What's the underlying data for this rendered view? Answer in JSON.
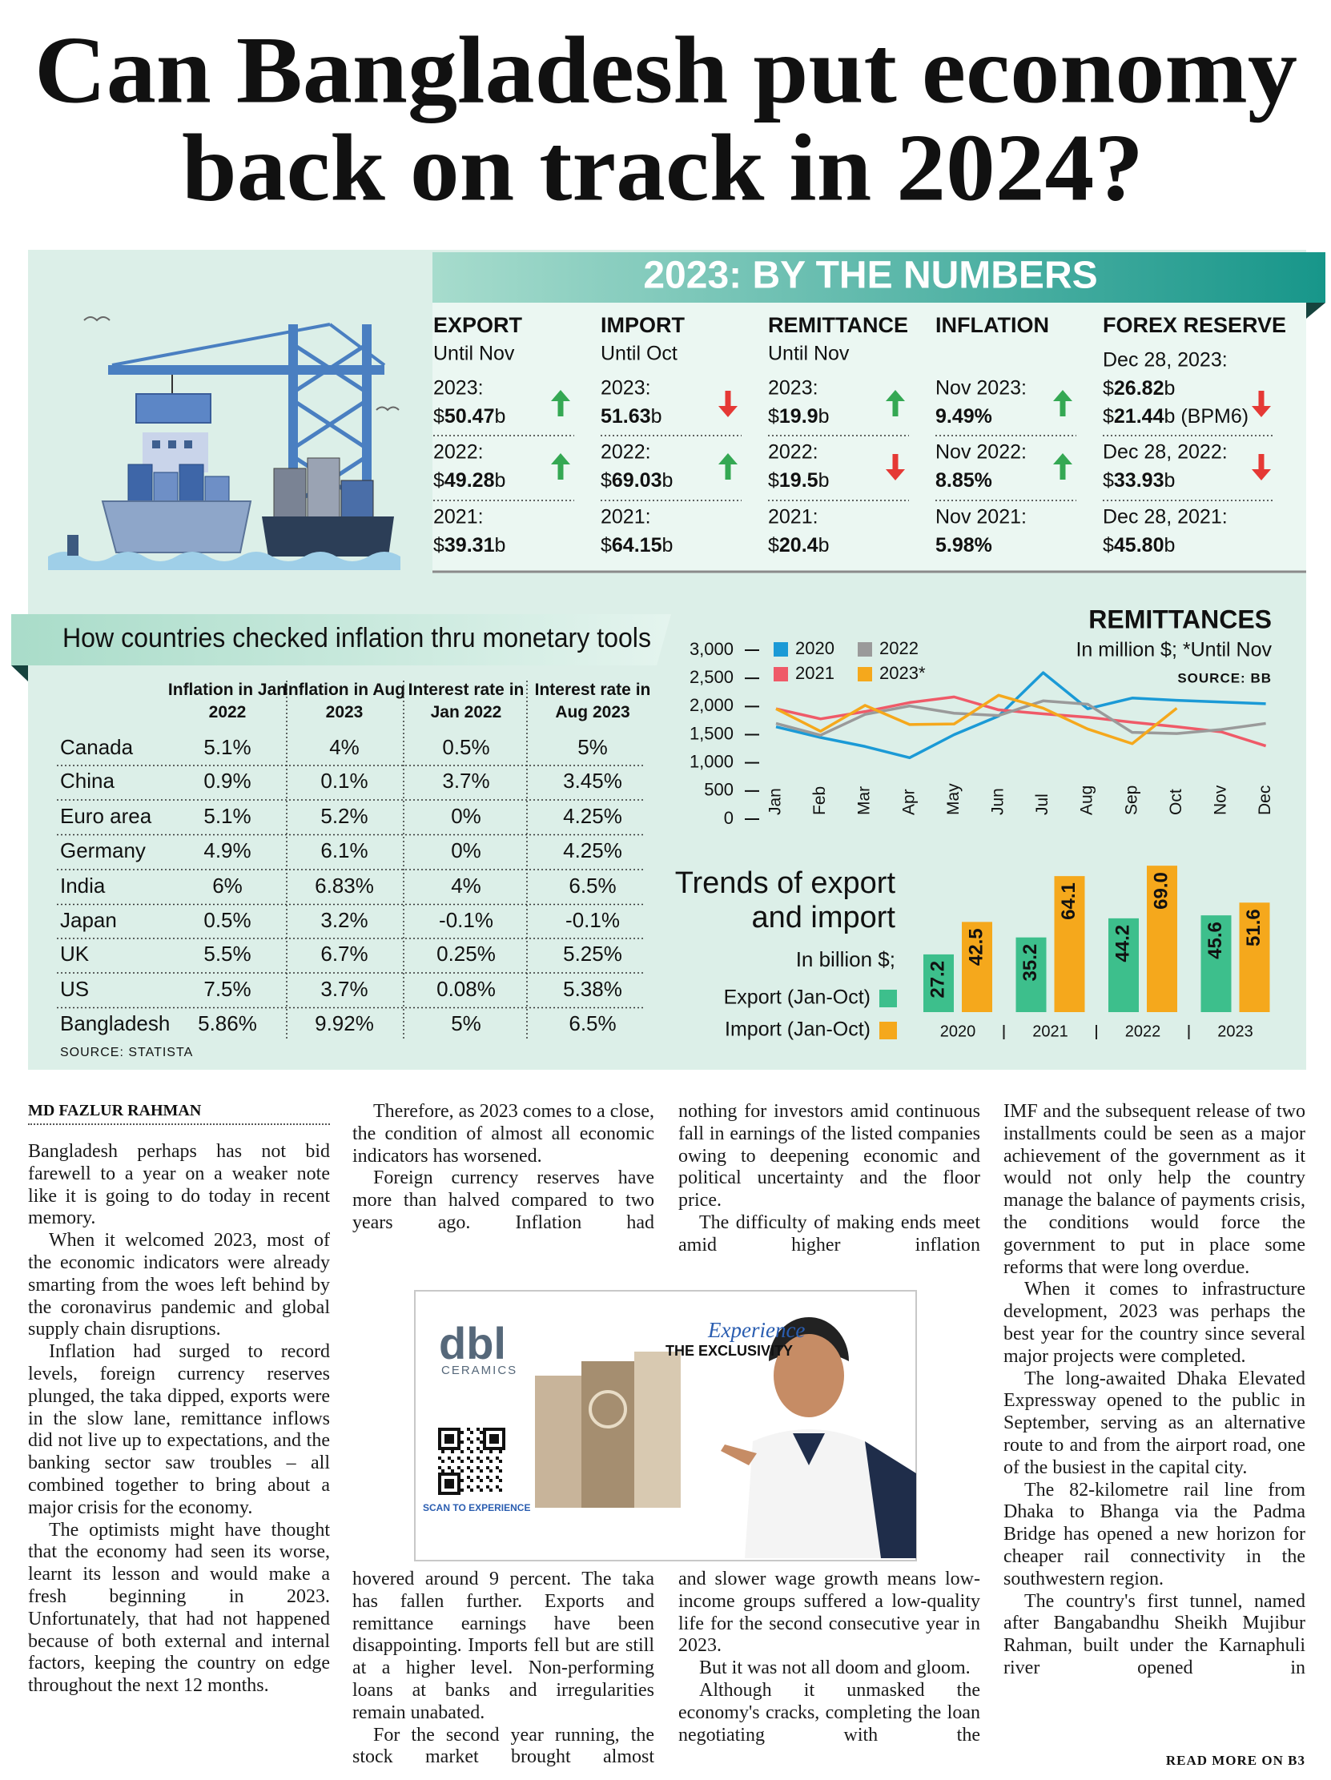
{
  "headline": {
    "lines": [
      "Can Bangladesh put economy",
      "back on track in 2024?"
    ]
  },
  "numbers": {
    "banner": "2023: BY THE NUMBERS",
    "columns": [
      {
        "title": "EXPORT",
        "subtitle": "Until Nov",
        "rows": [
          {
            "label": "2023:",
            "values": [
              "$50.47b"
            ],
            "trend": "up"
          },
          {
            "label": "2022:",
            "values": [
              "$49.28b"
            ],
            "trend": "up"
          },
          {
            "label": "2021:",
            "values": [
              "$39.31b"
            ]
          }
        ]
      },
      {
        "title": "IMPORT",
        "subtitle": "Until Oct",
        "rows": [
          {
            "label": "2023:",
            "values": [
              "51.63b"
            ],
            "trend": "down"
          },
          {
            "label": "2022:",
            "values": [
              "$69.03b"
            ],
            "trend": "up"
          },
          {
            "label": "2021:",
            "values": [
              "$64.15b"
            ]
          }
        ]
      },
      {
        "title": "REMITTANCE",
        "subtitle": "Until Nov",
        "rows": [
          {
            "label": "2023:",
            "values": [
              "$19.9b"
            ],
            "trend": "up"
          },
          {
            "label": "2022:",
            "values": [
              "$19.5b"
            ],
            "trend": "down"
          },
          {
            "label": "2021:",
            "values": [
              "$20.4b"
            ]
          }
        ]
      },
      {
        "title": "INFLATION",
        "rows": [
          {
            "label": "Nov 2023:",
            "values": [
              "9.49%"
            ],
            "trend": "up"
          },
          {
            "label": "Nov 2022:",
            "values": [
              "8.85%"
            ],
            "trend": "up"
          },
          {
            "label": "Nov 2021:",
            "values": [
              "5.98%"
            ]
          }
        ]
      },
      {
        "title": "FOREX RESERVE",
        "rows": [
          {
            "label": "Dec 28, 2023:",
            "values": [
              "$26.82b",
              "$21.44b (BPM6)"
            ],
            "trend": "down"
          },
          {
            "label": "Dec 28, 2022:",
            "values": [
              "$33.93b"
            ],
            "trend": "down"
          },
          {
            "label": "Dec 28, 2021:",
            "values": [
              "$45.80b"
            ]
          }
        ]
      }
    ]
  },
  "inflation_table": {
    "title": "How countries checked inflation thru monetary tools",
    "columns": [
      "Inflation in Jan 2022",
      "Inflation in Aug 2023",
      "Interest rate in Jan 2022",
      "Interest rate in Aug 2023"
    ],
    "rows": [
      [
        "Canada",
        "5.1%",
        "4%",
        "0.5%",
        "5%"
      ],
      [
        "China",
        "0.9%",
        "0.1%",
        "3.7%",
        "3.45%"
      ],
      [
        "Euro area",
        "5.1%",
        "5.2%",
        "0%",
        "4.25%"
      ],
      [
        "Germany",
        "4.9%",
        "6.1%",
        "0%",
        "4.25%"
      ],
      [
        "India",
        "6%",
        "6.83%",
        "4%",
        "6.5%"
      ],
      [
        "Japan",
        "0.5%",
        "3.2%",
        "-0.1%",
        "-0.1%"
      ],
      [
        "UK",
        "5.5%",
        "6.7%",
        "0.25%",
        "5.25%"
      ],
      [
        "US",
        "7.5%",
        "3.7%",
        "0.08%",
        "5.38%"
      ],
      [
        "Bangladesh",
        "5.86%",
        "9.92%",
        "5%",
        "6.5%"
      ]
    ],
    "source": "SOURCE: STATISTA"
  },
  "chart_data": [
    {
      "type": "line",
      "title": "REMITTANCES",
      "subtitle": "In million $; *Until Nov",
      "source": "SOURCE: BB",
      "categories": [
        "Jan",
        "Feb",
        "Mar",
        "Apr",
        "May",
        "Jun",
        "Jul",
        "Aug",
        "Sep",
        "Oct",
        "Nov",
        "Dec"
      ],
      "ylim": [
        0,
        3000
      ],
      "yticks": [
        {
          "value": 3000,
          "label": "3,000"
        },
        {
          "value": 2500,
          "label": "2,500"
        },
        {
          "value": 2000,
          "label": "2,000"
        },
        {
          "value": 1500,
          "label": "1,500"
        },
        {
          "value": 1000,
          "label": "1,000"
        },
        500,
        0
      ],
      "series": [
        {
          "name": "2020",
          "color": "#1b9ad6",
          "values": [
            1640,
            1450,
            1290,
            1090,
            1500,
            1830,
            2600,
            1960,
            2150,
            2110,
            2080,
            2050
          ]
        },
        {
          "name": "2021",
          "color": "#ef5a68",
          "values": [
            1960,
            1780,
            1910,
            2070,
            2170,
            1940,
            1870,
            1810,
            1720,
            1640,
            1550,
            1300
          ]
        },
        {
          "name": "2022",
          "color": "#9a9a9a",
          "values": [
            1700,
            1490,
            1860,
            2010,
            1880,
            1840,
            2100,
            2040,
            1540,
            1520,
            1590,
            1700
          ]
        },
        {
          "name": "2023*",
          "color": "#f5a81c",
          "values": [
            1960,
            1560,
            2020,
            1680,
            1690,
            2200,
            1970,
            1600,
            1340,
            1970,
            null,
            null
          ]
        }
      ]
    },
    {
      "type": "bar",
      "title": "Trends of export and import",
      "subtitle": "In billion $;",
      "categories": [
        "2020",
        "2021",
        "2022",
        "2023"
      ],
      "series": [
        {
          "name": "Export (Jan-Oct)",
          "color": "#3dbf8c",
          "values": [
            27.2,
            35.2,
            44.2,
            45.6
          ]
        },
        {
          "name": "Import (Jan-Oct)",
          "color": "#f5a81c",
          "values": [
            42.5,
            64.1,
            69.0,
            51.6
          ],
          "value_labels": [
            "42.5",
            "64.1",
            "69.0",
            "51.6"
          ]
        }
      ]
    }
  ],
  "ad": {
    "brand": "dbl",
    "brand_sub": "CERAMICS",
    "tagline_script": "Experience",
    "tagline": "THE EXCLUSIVITY",
    "qr_caption": "SCAN TO EXPERIENCE"
  },
  "article": {
    "byline": "MD FAZLUR RAHMAN",
    "blocks": [
      {
        "paragraphs": [
          "Bangladesh perhaps has not bid farewell to a year on a weaker note like it is going to do today in recent memory.",
          "When it welcomed 2023, most of the economic indicators were already smarting from the woes left behind by the coronavirus pandemic and global supply chain disruptions.",
          "Inflation had surged to record levels, foreign currency reserves plunged, the taka dipped, exports were in the slow lane, remittance inflows did not live up to expectations, and the banking sector saw troubles – all combined together to bring about a major crisis for the economy.",
          "The optimists might have thought that the economy had seen its worse, learnt its lesson and would make a fresh beginning in 2023. Unfortunately, that had not happened because of both external and internal factors, keeping the country on edge throughout the next 12 months."
        ]
      },
      {
        "paragraphs": [
          "Therefore, as 2023 comes to a close, the condition of almost all economic indicators has worsened.",
          "Foreign currency reserves have more than halved compared to two years ago. Inflation had"
        ]
      },
      {
        "paragraphs": [
          "hovered around 9 percent. The taka has fallen further. Exports and remittance earnings have been disappointing. Imports fell but are still at a higher level. Non-performing loans at banks and irregularities remain unabated.",
          "For the second year running, the stock market brought almost"
        ]
      },
      {
        "paragraphs": [
          "nothing for investors amid continuous fall in earnings of the listed companies owing to deepening economic and political uncertainty and the floor price.",
          "The difficulty of making ends meet amid higher inflation"
        ]
      },
      {
        "paragraphs": [
          "and slower wage growth means low-income groups suffered a low-quality life for the second consecutive year in 2023.",
          "But it was not all doom and gloom.",
          "Although it unmasked the economy's cracks, completing the loan negotiating with the"
        ]
      },
      {
        "paragraphs": [
          "IMF and the subsequent release of two installments could be seen as a major achievement of the government as it would not only help the country manage the balance of payments crisis, the conditions would force the government to put in place some reforms that were long overdue.",
          "When it comes to infrastructure development, 2023 was perhaps the best year for the country since several major projects were completed.",
          "The long-awaited Dhaka Elevated Expressway opened to the public in September, serving as an alternative route to and from the airport road, one of the busiest in the capital city.",
          "The 82-kilometre rail line from Dhaka to Bhanga via the Padma Bridge has opened a new horizon for cheaper rail connectivity in the southwestern region.",
          "The country's first tunnel, named after Bangabandhu Sheikh Mujibur Rahman, built under the Karnaphuli river opened in"
        ]
      }
    ],
    "jump": "READ MORE ON B3"
  }
}
